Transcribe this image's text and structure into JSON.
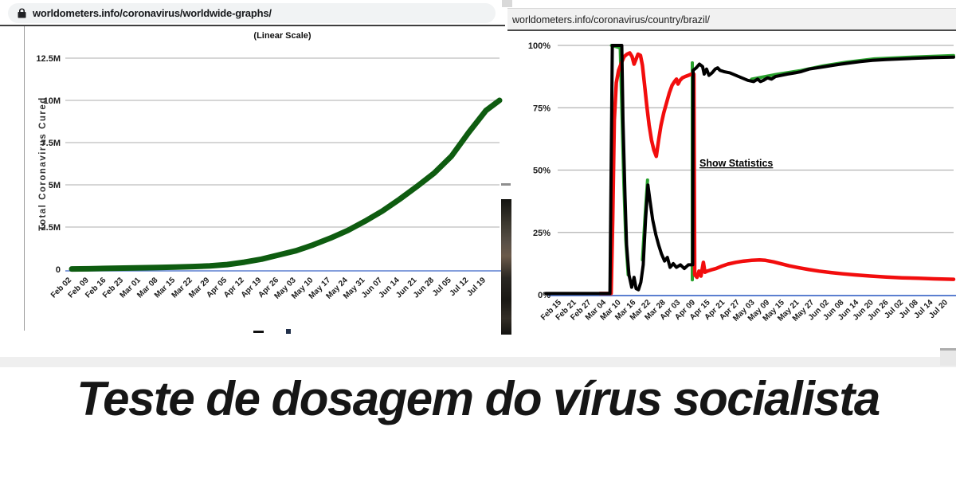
{
  "page": {
    "headline": "Teste de dosagem do vírus socialista"
  },
  "left_browser": {
    "url": "worldometers.info/coronavirus/worldwide-graphs/",
    "lock_icon": "lock-icon"
  },
  "right_browser": {
    "url": "worldometers.info/coronavirus/country/brazil/"
  },
  "colors": {
    "left_line": "#0e5c10",
    "axis_blue": "#5b7fd0",
    "grid": "#bdbdbd",
    "red": "#f20d0d",
    "black": "#000000",
    "green": "#2aa12e"
  },
  "chart_data": [
    {
      "type": "line",
      "title": "(Linear Scale)",
      "ylabel": "Total Coronavirus Cured",
      "ylim": [
        0,
        12.5
      ],
      "yticks": [
        "12.5M",
        "10M",
        "7.5M",
        "5M",
        "2.5M",
        "0"
      ],
      "ytick_values": [
        12.5,
        10,
        7.5,
        5,
        2.5,
        0
      ],
      "grid": true,
      "categories": [
        "Feb 02",
        "Feb 09",
        "Feb 16",
        "Feb 23",
        "Mar 01",
        "Mar 08",
        "Mar 15",
        "Mar 22",
        "Mar 29",
        "Apr 05",
        "Apr 12",
        "Apr 19",
        "Apr 26",
        "May 03",
        "May 10",
        "May 17",
        "May 24",
        "May 31",
        "Jun 07",
        "Jun 14",
        "Jun 21",
        "Jun 28",
        "Jul 05",
        "Jul 12",
        "Jul 19"
      ],
      "values": [
        0.02,
        0.03,
        0.05,
        0.07,
        0.09,
        0.11,
        0.13,
        0.16,
        0.2,
        0.28,
        0.42,
        0.6,
        0.85,
        1.1,
        1.45,
        1.85,
        2.3,
        2.85,
        3.45,
        4.15,
        4.9,
        5.7,
        6.7,
        8.1,
        9.4
      ],
      "end_value": 10.0,
      "series_color": "#0e5c10",
      "units": "millions cured"
    },
    {
      "type": "line",
      "ylim": [
        0,
        100
      ],
      "yticks": [
        "100%",
        "75%",
        "50%",
        "25%",
        "0%"
      ],
      "ytick_values": [
        100,
        75,
        50,
        25,
        0
      ],
      "grid": true,
      "annotation": "Show Statistics",
      "categories": [
        "Feb 15",
        "Feb 21",
        "Feb 27",
        "Mar 04",
        "Mar 10",
        "Mar 16",
        "Mar 22",
        "Mar 28",
        "Apr 03",
        "Apr 09",
        "Apr 15",
        "Apr 21",
        "Apr 27",
        "May 03",
        "May 09",
        "May 15",
        "May 21",
        "May 27",
        "Jun 02",
        "Jun 08",
        "Jun 14",
        "Jun 20",
        "Jun 26",
        "Jul 02",
        "Jul 08",
        "Jul 14",
        "Jul 20"
      ],
      "series": [
        {
          "name": "green-line",
          "color": "#2aa12e",
          "width": 4,
          "segments": [
            [
              [
                0.136,
                100
              ],
              [
                0.158,
                99
              ],
              [
                0.162,
                75
              ],
              [
                0.167,
                45
              ],
              [
                0.172,
                22
              ],
              [
                0.178,
                8
              ]
            ],
            [
              [
                0.214,
                14
              ],
              [
                0.221,
                32
              ],
              [
                0.227,
                46
              ]
            ],
            [
              [
                0.34,
                6
              ],
              [
                0.34,
                93
              ]
            ],
            [
              [
                0.49,
                86.5
              ],
              [
                0.55,
                88.3
              ],
              [
                0.61,
                89.8
              ],
              [
                0.67,
                91.8
              ],
              [
                0.73,
                93.3
              ],
              [
                0.8,
                94.6
              ],
              [
                0.88,
                95.2
              ],
              [
                1,
                95.9
              ]
            ]
          ]
        },
        {
          "name": "red-line",
          "color": "#f20d0d",
          "width": 4.5,
          "segments": [
            [
              [
                0.107,
                0.5
              ],
              [
                0.135,
                0.5
              ],
              [
                0.139,
                30
              ],
              [
                0.143,
                70
              ],
              [
                0.148,
                85
              ],
              [
                0.154,
                90
              ],
              [
                0.161,
                93
              ],
              [
                0.168,
                95.5
              ],
              [
                0.175,
                96.5
              ],
              [
                0.182,
                97
              ],
              [
                0.188,
                95.5
              ],
              [
                0.193,
                92.5
              ],
              [
                0.198,
                94.5
              ],
              [
                0.203,
                96.5
              ],
              [
                0.209,
                96
              ],
              [
                0.214,
                92
              ],
              [
                0.219,
                85
              ],
              [
                0.225,
                76
              ],
              [
                0.231,
                68
              ],
              [
                0.237,
                62
              ],
              [
                0.243,
                58
              ],
              [
                0.249,
                55.5
              ],
              [
                0.255,
                62
              ],
              [
                0.261,
                68
              ],
              [
                0.268,
                73
              ],
              [
                0.275,
                77
              ],
              [
                0.282,
                81
              ],
              [
                0.289,
                84
              ],
              [
                0.295,
                85.5
              ],
              [
                0.3,
                86.5
              ],
              [
                0.304,
                84.5
              ],
              [
                0.309,
                86
              ],
              [
                0.315,
                87
              ],
              [
                0.322,
                87.5
              ],
              [
                0.33,
                88
              ],
              [
                0.338,
                88.5
              ],
              [
                0.344,
                88.5
              ],
              [
                0.346,
                8
              ],
              [
                0.352,
                7
              ],
              [
                0.357,
                9.5
              ],
              [
                0.362,
                7.5
              ],
              [
                0.368,
                13
              ],
              [
                0.372,
                9
              ],
              [
                0.378,
                9.5
              ],
              [
                0.388,
                10
              ],
              [
                0.4,
                10.5
              ],
              [
                0.415,
                11.5
              ],
              [
                0.43,
                12.3
              ],
              [
                0.45,
                13
              ],
              [
                0.47,
                13.5
              ],
              [
                0.49,
                13.8
              ],
              [
                0.51,
                14
              ],
              [
                0.525,
                13.8
              ],
              [
                0.545,
                13.2
              ],
              [
                0.565,
                12.4
              ],
              [
                0.585,
                11.6
              ],
              [
                0.61,
                10.8
              ],
              [
                0.635,
                10.1
              ],
              [
                0.66,
                9.5
              ],
              [
                0.69,
                8.9
              ],
              [
                0.72,
                8.4
              ],
              [
                0.75,
                8
              ],
              [
                0.79,
                7.5
              ],
              [
                0.83,
                7.1
              ],
              [
                0.87,
                6.8
              ],
              [
                0.91,
                6.6
              ],
              [
                0.95,
                6.4
              ],
              [
                1,
                6.2
              ]
            ]
          ]
        },
        {
          "name": "black-line",
          "color": "#000000",
          "width": 4,
          "segments": [
            [
              [
                -0.03,
                0.5
              ],
              [
                0.132,
                0.5
              ],
              [
                0.138,
                100
              ],
              [
                0.162,
                100
              ],
              [
                0.165,
                70
              ],
              [
                0.17,
                40
              ],
              [
                0.174,
                20
              ],
              [
                0.18,
                8
              ],
              [
                0.187,
                3
              ],
              [
                0.193,
                7
              ],
              [
                0.198,
                2.5
              ],
              [
                0.204,
                2
              ],
              [
                0.21,
                5
              ],
              [
                0.216,
                12
              ],
              [
                0.222,
                30
              ],
              [
                0.228,
                44
              ],
              [
                0.233,
                38
              ],
              [
                0.24,
                30
              ],
              [
                0.248,
                24
              ],
              [
                0.255,
                20
              ],
              [
                0.262,
                16.5
              ],
              [
                0.27,
                13.5
              ],
              [
                0.277,
                15
              ],
              [
                0.284,
                11
              ],
              [
                0.292,
                12.5
              ],
              [
                0.3,
                11
              ],
              [
                0.31,
                12
              ],
              [
                0.32,
                10.5
              ],
              [
                0.33,
                12
              ],
              [
                0.341,
                12
              ],
              [
                0.342,
                90
              ],
              [
                0.35,
                91
              ],
              [
                0.358,
                92.5
              ],
              [
                0.366,
                91.5
              ],
              [
                0.37,
                88.5
              ],
              [
                0.376,
                90.5
              ],
              [
                0.382,
                88
              ],
              [
                0.39,
                89
              ],
              [
                0.398,
                90.5
              ],
              [
                0.404,
                91
              ],
              [
                0.41,
                90
              ],
              [
                0.42,
                89.5
              ],
              [
                0.435,
                89
              ],
              [
                0.45,
                88
              ],
              [
                0.465,
                87
              ],
              [
                0.48,
                86
              ],
              [
                0.495,
                85.5
              ],
              [
                0.505,
                86.5
              ],
              [
                0.512,
                85.5
              ],
              [
                0.52,
                86
              ],
              [
                0.53,
                87
              ],
              [
                0.54,
                86.5
              ],
              [
                0.55,
                87.5
              ],
              [
                0.565,
                88
              ],
              [
                0.58,
                88.5
              ],
              [
                0.6,
                89
              ],
              [
                0.615,
                89.5
              ],
              [
                0.635,
                90.5
              ],
              [
                0.655,
                91
              ],
              [
                0.675,
                91.5
              ],
              [
                0.695,
                92
              ],
              [
                0.715,
                92.5
              ],
              [
                0.74,
                93
              ],
              [
                0.765,
                93.5
              ],
              [
                0.795,
                94
              ],
              [
                0.83,
                94.3
              ],
              [
                0.87,
                94.6
              ],
              [
                0.91,
                94.9
              ],
              [
                0.95,
                95.1
              ],
              [
                1,
                95.3
              ]
            ]
          ]
        }
      ]
    }
  ]
}
